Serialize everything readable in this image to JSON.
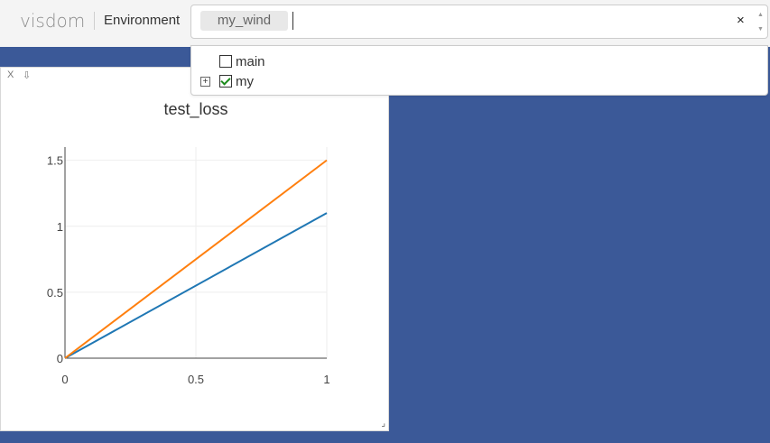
{
  "app": {
    "brand": "visdom",
    "environment_label": "Environment"
  },
  "env_select": {
    "selected_tag": "my_wind",
    "clear_symbol": "×"
  },
  "dropdown": {
    "options": [
      {
        "label": "main",
        "checked": false,
        "expandable": false
      },
      {
        "label": "my",
        "checked": true,
        "expandable": true
      }
    ],
    "expander_symbol": "⊞"
  },
  "pane": {
    "close_label": "X",
    "download_label": "⇩",
    "resize_symbol": "⌟"
  },
  "colors": {
    "background": "#3b5998",
    "series_1": "#1f77b4",
    "series_2": "#ff7f0e"
  },
  "chart_data": {
    "type": "line",
    "title": "test_loss",
    "xlabel": "",
    "ylabel": "",
    "xlim": [
      0,
      1
    ],
    "ylim": [
      0,
      1.6
    ],
    "xticks": [
      0,
      0.5,
      1
    ],
    "yticks": [
      0,
      0.5,
      1,
      1.5
    ],
    "grid": true,
    "series": [
      {
        "x": [
          0,
          1
        ],
        "y": [
          0,
          1.1
        ],
        "color": "#1f77b4"
      },
      {
        "x": [
          0,
          1
        ],
        "y": [
          0,
          1.5
        ],
        "color": "#ff7f0e"
      }
    ]
  }
}
